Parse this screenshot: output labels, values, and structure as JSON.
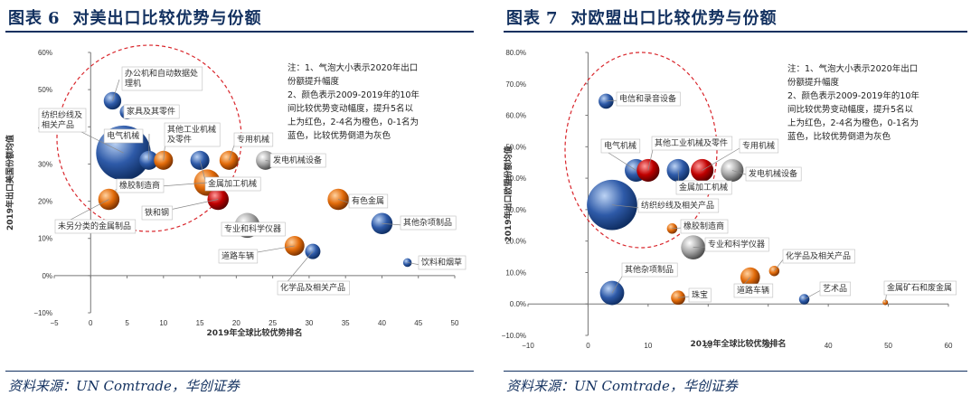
{
  "charts": [
    {
      "fig_label": "图表",
      "fig_num": "6",
      "fig_title": "对美出口比较优势与份额",
      "source": "资料来源：UN Comtrade，华创证券",
      "colors": {
        "title": "#12305f",
        "red": "#c00000",
        "blue": "#2e5aa8",
        "orange": "#e26b0a",
        "gray": "#9a9a9a",
        "circle": "#d9262c"
      }
    },
    {
      "fig_label": "图表",
      "fig_num": "7",
      "fig_title": "对欧盟出口比较优势与份额",
      "source": "资料来源：UN Comtrade，华创证券",
      "colors": {
        "title": "#12305f",
        "red": "#c00000",
        "blue": "#2e5aa8",
        "orange": "#e26b0a",
        "gray": "#9a9a9a",
        "circle": "#d9262c"
      }
    }
  ],
  "chart_data": [
    {
      "type": "scatter",
      "subtype": "bubble",
      "title": "对美出口比较优势与份额",
      "xlabel": "2019年全球比较优势排名",
      "ylabel": "2019年出口美国份额均值",
      "xlim": [
        -5,
        50
      ],
      "ylim": [
        -10,
        60
      ],
      "x_ticks": [
        -5,
        0,
        5,
        10,
        15,
        20,
        25,
        30,
        35,
        40,
        45,
        50
      ],
      "x_tick_labels": [
        "−5",
        "0",
        "5",
        "10",
        "15",
        "20",
        "25",
        "30",
        "35",
        "40",
        "45",
        "50"
      ],
      "y_ticks": [
        -10,
        0,
        10,
        20,
        30,
        40,
        50,
        60
      ],
      "y_tick_labels": [
        "−10%",
        "0%",
        "10%",
        "20%",
        "30%",
        "40%",
        "50%",
        "60%"
      ],
      "grid": false,
      "note": [
        "注：1、气泡大小表示2020年出口",
        "份额提升幅度",
        "2、颜色表示2009-2019年的10年",
        "间比较优势变动幅度，提升5名以",
        "上为红色，2-4名为橙色，0-1名为",
        "蓝色，比较优势倒退为灰色"
      ],
      "highlight_circle": {
        "description": "red dashed circle around top-left cluster"
      },
      "points": [
        {
          "name": "办公机和自动数据处理机",
          "label_lines": [
            "办公机和自动数据处",
            "理机"
          ],
          "x": 3,
          "y": 47,
          "size": 2.0,
          "color": "blue"
        },
        {
          "name": "家具及其零件",
          "label_lines": [
            "家具及其零件"
          ],
          "x": 5,
          "y": 44,
          "size": 1.6,
          "color": "blue"
        },
        {
          "name": "纺织纱线及相关产品",
          "label_lines": [
            "纺织纱线及",
            "相关产品"
          ],
          "x": 4.5,
          "y": 33,
          "size": 7.0,
          "color": "blue"
        },
        {
          "name": "电气机械",
          "label_lines": [
            "电气机械"
          ],
          "x": 8,
          "y": 31,
          "size": 2.2,
          "color": "blue"
        },
        {
          "name": "其他工业机械及零件",
          "label_lines": [
            "其他工业机械",
            "及零件"
          ],
          "x": 10,
          "y": 31,
          "size": 2.2,
          "color": "orange"
        },
        {
          "name": "专用机械",
          "label_lines": [
            "专用机械"
          ],
          "x": 19,
          "y": 31,
          "size": 2.2,
          "color": "orange"
        },
        {
          "name": "金属加工机械",
          "label_lines": [
            "金属加工机械"
          ],
          "x": 15,
          "y": 31,
          "size": 2.2,
          "color": "blue"
        },
        {
          "name": "发电机械设备",
          "label_lines": [
            "发电机械设备"
          ],
          "x": 24,
          "y": 31,
          "size": 2.2,
          "color": "gray"
        },
        {
          "name": "橡胶制造商",
          "label_lines": [
            "橡胶制造商"
          ],
          "x": 16,
          "y": 25,
          "size": 3.2,
          "color": "orange"
        },
        {
          "name": "铁和钢",
          "label_lines": [
            "铁和钢"
          ],
          "x": 17.5,
          "y": 20.5,
          "size": 2.5,
          "color": "red"
        },
        {
          "name": "未另分类的金属制品",
          "label_lines": [
            "未另分类的金属制品"
          ],
          "x": 2.5,
          "y": 20.5,
          "size": 2.5,
          "color": "orange"
        },
        {
          "name": "专业和科学仪器",
          "label_lines": [
            "专业和科学仪器"
          ],
          "x": 21.5,
          "y": 13.5,
          "size": 3.0,
          "color": "gray"
        },
        {
          "name": "有色金属",
          "label_lines": [
            "有色金属"
          ],
          "x": 34,
          "y": 20.5,
          "size": 2.5,
          "color": "orange"
        },
        {
          "name": "其他杂项制品",
          "label_lines": [
            "其他杂项制品"
          ],
          "x": 40,
          "y": 14,
          "size": 2.5,
          "color": "blue"
        },
        {
          "name": "道路车辆",
          "label_lines": [
            "道路车辆"
          ],
          "x": 28,
          "y": 8,
          "size": 2.3,
          "color": "orange"
        },
        {
          "name": "化学品及相关产品",
          "label_lines": [
            "化学品及相关产品"
          ],
          "x": 30.5,
          "y": 6.5,
          "size": 1.7,
          "color": "blue"
        },
        {
          "name": "饮料和烟草",
          "label_lines": [
            "饮料和烟草"
          ],
          "x": 43.5,
          "y": 3.5,
          "size": 0.8,
          "color": "blue"
        }
      ]
    },
    {
      "type": "scatter",
      "subtype": "bubble",
      "title": "对欧盟出口比较优势与份额",
      "xlabel": "2019年全球比较优势排名",
      "ylabel": "2019年出口欧盟份额均值",
      "xlim": [
        -10,
        60
      ],
      "ylim": [
        -10,
        80
      ],
      "x_ticks": [
        -10,
        0,
        10,
        20,
        30,
        40,
        50,
        60
      ],
      "x_tick_labels": [
        "−10",
        "0",
        "10",
        "20",
        "30",
        "40",
        "50",
        "60"
      ],
      "y_ticks": [
        -10,
        0,
        10,
        20,
        30,
        40,
        50,
        60,
        70,
        80
      ],
      "y_tick_labels": [
        "−10.0%",
        "0.0%",
        "10.0%",
        "20.0%",
        "30.0%",
        "40.0%",
        "50.0%",
        "60.0%",
        "70.0%",
        "80.0%"
      ],
      "grid": false,
      "note": [
        "注：1、气泡大小表示2020年出口",
        "份额提升幅度",
        "2、颜色表示2009-2019年的10年",
        "间比较优势变动幅度，提升5名以",
        "上为红色，2-4名为橙色，0-1名为",
        "蓝色，比较优势倒退为灰色"
      ],
      "highlight_circle": {
        "description": "red dashed circle around top-left cluster"
      },
      "points": [
        {
          "name": "电信和录音设备",
          "label_lines": [
            "电信和录音设备"
          ],
          "x": 3,
          "y": 64.5,
          "size": 1.6,
          "color": "blue"
        },
        {
          "name": "电气机械",
          "label_lines": [
            "电气机械"
          ],
          "x": 8,
          "y": 42.5,
          "size": 2.6,
          "color": "blue"
        },
        {
          "name": "其他工业机械及零件",
          "label_lines": [
            "其他工业机械及零件"
          ],
          "x": 10,
          "y": 42.5,
          "size": 2.6,
          "color": "red"
        },
        {
          "name": "金属加工机械",
          "label_lines": [
            "金属加工机械"
          ],
          "x": 15,
          "y": 42.5,
          "size": 2.6,
          "color": "blue"
        },
        {
          "name": "专用机械",
          "label_lines": [
            "专用机械"
          ],
          "x": 19,
          "y": 42.5,
          "size": 2.6,
          "color": "red"
        },
        {
          "name": "发电机械设备",
          "label_lines": [
            "发电机械设备"
          ],
          "x": 24,
          "y": 42.5,
          "size": 2.6,
          "color": "gray"
        },
        {
          "name": "纺织纱线及相关产品",
          "label_lines": [
            "纺织纱线及相关产品"
          ],
          "x": 4,
          "y": 31.5,
          "size": 6.2,
          "color": "blue"
        },
        {
          "name": "橡胶制造商",
          "label_lines": [
            "橡胶制造商"
          ],
          "x": 14,
          "y": 24,
          "size": 1.0,
          "color": "orange"
        },
        {
          "name": "专业和科学仪器",
          "label_lines": [
            "专业和科学仪器"
          ],
          "x": 17.5,
          "y": 18,
          "size": 2.8,
          "color": "gray"
        },
        {
          "name": "其他杂项制品",
          "label_lines": [
            "其他杂项制品"
          ],
          "x": 4,
          "y": 3.5,
          "size": 2.8,
          "color": "blue"
        },
        {
          "name": "珠宝",
          "label_lines": [
            "珠宝"
          ],
          "x": 15,
          "y": 2,
          "size": 1.5,
          "color": "orange"
        },
        {
          "name": "道路车辆",
          "label_lines": [
            "道路车辆"
          ],
          "x": 27,
          "y": 8.5,
          "size": 2.2,
          "color": "orange"
        },
        {
          "name": "化学品及相关产品",
          "label_lines": [
            "化学品及相关产品"
          ],
          "x": 31,
          "y": 10.5,
          "size": 1.0,
          "color": "orange"
        },
        {
          "name": "艺术品",
          "label_lines": [
            "艺术品"
          ],
          "x": 36,
          "y": 1.5,
          "size": 1.0,
          "color": "blue"
        },
        {
          "name": "金属矿石和废金属",
          "label_lines": [
            "金属矿石和废金属"
          ],
          "x": 49.5,
          "y": 0.5,
          "size": 0.35,
          "color": "orange"
        }
      ]
    }
  ]
}
